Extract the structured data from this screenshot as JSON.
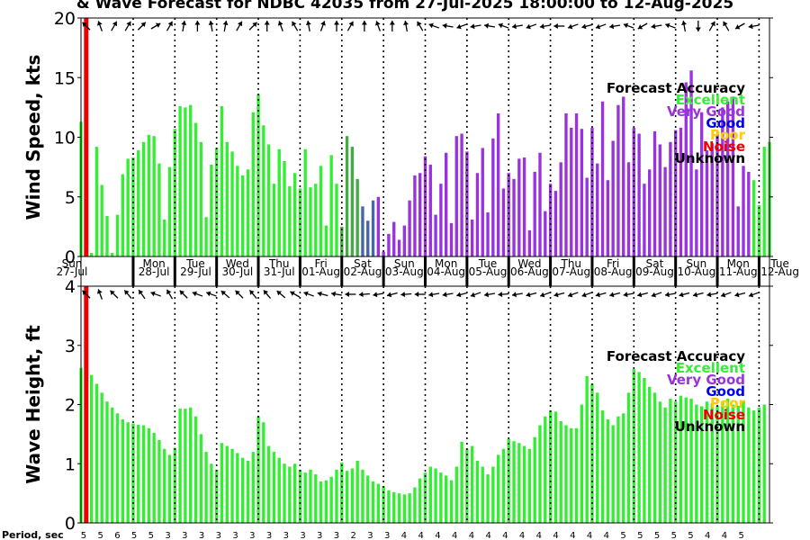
{
  "title": "& Wave Forecast for NDBC 42035 from 27-Jul-2025 18:00:00 to 12-Aug-2025",
  "legend": {
    "title": "Forecast Accuracy",
    "items": [
      {
        "label": "Excellent",
        "color": "#33ee33"
      },
      {
        "label": "Very Good",
        "color": "#9933dd"
      },
      {
        "label": "Good",
        "color": "#0000ee"
      },
      {
        "label": "Poor",
        "color": "#ffcc00"
      },
      {
        "label": "Noise",
        "color": "#ee0000"
      },
      {
        "label": "Unknown",
        "color": "#000000"
      }
    ]
  },
  "days": [
    {
      "dow": "Sun",
      "date": "27-Jul"
    },
    {
      "dow": "Mon",
      "date": "28-Jul"
    },
    {
      "dow": "Tue",
      "date": "29-Jul"
    },
    {
      "dow": "Wed",
      "date": "30-Jul"
    },
    {
      "dow": "Thu",
      "date": "31-Jul"
    },
    {
      "dow": "Fri",
      "date": "01-Aug"
    },
    {
      "dow": "Sat",
      "date": "02-Aug"
    },
    {
      "dow": "Sun",
      "date": "03-Aug"
    },
    {
      "dow": "Mon",
      "date": "04-Aug"
    },
    {
      "dow": "Tue",
      "date": "05-Aug"
    },
    {
      "dow": "Wed",
      "date": "06-Aug"
    },
    {
      "dow": "Thu",
      "date": "07-Aug"
    },
    {
      "dow": "Fri",
      "date": "08-Aug"
    },
    {
      "dow": "Sat",
      "date": "09-Aug"
    },
    {
      "dow": "Sun",
      "date": "10-Aug"
    },
    {
      "dow": "Mon",
      "date": "11-Aug"
    },
    {
      "dow": "Tue",
      "date": "12-Aug"
    }
  ],
  "period_label": "Period, sec",
  "periods": [
    5,
    5,
    6,
    5,
    5,
    3,
    3,
    3,
    3,
    3,
    3,
    3,
    3,
    3,
    3,
    3,
    2,
    3,
    3,
    4,
    4,
    4,
    4,
    4,
    4,
    4,
    4,
    4,
    4,
    4,
    4,
    4,
    5,
    5,
    5,
    5,
    5,
    4,
    4,
    5
  ],
  "chart_data": [
    {
      "type": "bar",
      "ylabel": "Wind Speed, kts",
      "ylim": [
        0,
        20
      ],
      "yticks": [
        0,
        5,
        10,
        15,
        20
      ],
      "xlim_hours": [
        0,
        396
      ],
      "bar_step_hours": 3,
      "start_offset_hours": 0,
      "now_marker_hours": 3,
      "colors_by_group": {
        "E": "#33ee33",
        "V": "#9933dd",
        "D": "#44aa44",
        "G": "#4466aa"
      },
      "values": [
        11.3,
        10.7,
        0.3,
        9.2,
        6.0,
        3.4,
        0.3,
        3.5,
        6.9,
        8.2,
        8.3,
        8.9,
        9.6,
        10.2,
        10.1,
        7.8,
        3.1,
        7.5,
        10.7,
        12.6,
        12.5,
        12.7,
        11.2,
        9.6,
        3.3,
        7.7,
        9.1,
        12.6,
        9.6,
        8.8,
        7.6,
        6.8,
        7.3,
        12.1,
        13.6,
        11.0,
        9.4,
        6.1,
        9.0,
        8.0,
        5.9,
        7.0,
        5.7,
        9.0,
        5.8,
        6.1,
        7.6,
        2.6,
        8.5,
        6.1,
        2.5,
        10.1,
        9.2,
        6.5,
        4.2,
        3.0,
        4.7,
        5.0,
        0.4,
        1.9,
        2.9,
        1.4,
        2.6,
        4.7,
        6.8,
        7.0,
        8.4,
        7.7,
        3.5,
        6.1,
        8.7,
        2.8,
        10.1,
        10.3,
        8.8,
        3.1,
        7.0,
        9.1,
        3.7,
        9.9,
        12.0,
        5.7,
        7.0,
        6.5,
        8.2,
        8.3,
        2.2,
        7.1,
        8.7,
        3.8,
        6.1,
        5.5,
        7.9,
        12.0,
        10.8,
        12.0,
        10.7,
        6.6,
        10.8,
        7.8,
        13.0,
        6.4,
        9.7,
        12.7,
        13.4,
        7.9,
        10.8,
        10.3,
        6.1,
        7.3,
        10.5,
        9.4,
        7.5,
        9.6,
        10.6,
        10.8,
        14.6,
        15.6,
        7.3,
        12.1,
        8.9,
        9.5,
        10.3,
        12.5,
        13.0,
        13.4,
        4.2,
        7.6,
        7.1,
        6.4,
        4.3,
        9.2,
        9.6
      ],
      "groups": "EEEEEEEEEEEEEEEEEEEEEEEEEEEEEEEEEEEEEEEEEEEEEEEEEEDDDDGGGVVVVVVVVVVVVVVVVVVVVVVVVVVVVVVVVVVVVVVVVVVVVVVVVVVVVVVVVVVVVVVVVVVVVVVVV",
      "arrows": [
        225,
        250,
        300,
        300,
        315,
        330,
        300,
        280,
        270,
        260,
        280,
        300,
        315,
        270,
        250,
        240,
        260,
        290,
        270,
        300,
        270,
        250,
        270,
        260,
        240,
        200,
        190,
        160,
        170,
        190,
        200,
        170,
        160,
        170,
        180,
        160,
        165,
        160,
        170,
        200,
        150,
        170,
        200,
        260,
        90,
        300,
        240,
        150,
        170,
        180
      ]
    },
    {
      "type": "bar",
      "ylabel": "Wave Height, ft",
      "ylim": [
        0,
        4
      ],
      "yticks": [
        0,
        1,
        2,
        3,
        4
      ],
      "xlim_hours": [
        0,
        396
      ],
      "bar_step_hours": 3,
      "start_offset_hours": 0,
      "now_marker_hours": 3,
      "color": "#33ee33",
      "values": [
        2.62,
        2.58,
        2.5,
        2.35,
        2.2,
        2.05,
        1.95,
        1.85,
        1.75,
        1.7,
        1.68,
        1.66,
        1.65,
        1.6,
        1.52,
        1.4,
        1.25,
        1.15,
        1.27,
        1.93,
        1.93,
        1.95,
        1.8,
        1.5,
        1.2,
        1.0,
        0.9,
        1.35,
        1.3,
        1.25,
        1.18,
        1.1,
        1.05,
        1.2,
        1.8,
        1.7,
        1.3,
        1.2,
        1.1,
        1.0,
        0.95,
        1.0,
        0.9,
        0.85,
        0.9,
        0.82,
        0.7,
        0.72,
        0.78,
        0.9,
        1.02,
        0.88,
        0.92,
        1.05,
        0.9,
        0.8,
        0.7,
        0.66,
        0.62,
        0.55,
        0.52,
        0.5,
        0.48,
        0.5,
        0.6,
        0.75,
        0.85,
        0.95,
        0.92,
        0.85,
        0.8,
        0.72,
        0.95,
        1.37,
        1.25,
        1.3,
        1.05,
        0.95,
        0.82,
        0.95,
        1.15,
        1.25,
        1.42,
        1.38,
        1.35,
        1.3,
        1.25,
        1.45,
        1.65,
        1.8,
        1.9,
        1.88,
        1.72,
        1.65,
        1.6,
        1.6,
        2.0,
        2.48,
        2.35,
        2.2,
        1.9,
        1.75,
        1.65,
        1.8,
        1.85,
        2.2,
        2.6,
        2.55,
        2.45,
        2.3,
        2.2,
        2.05,
        1.95,
        2.1,
        2.05,
        2.15,
        2.12,
        2.1,
        2.0,
        1.97,
        2.05,
        2.02,
        1.98,
        2.05,
        2.1,
        2.0,
        1.98,
        2.05,
        1.95,
        1.9,
        1.95,
        2.0
      ],
      "arrows": [
        225,
        250,
        225,
        230,
        235,
        200,
        240,
        225,
        200,
        200,
        220,
        225,
        230,
        230,
        220,
        210,
        200,
        195,
        190,
        180,
        175,
        170,
        165,
        175,
        180,
        170,
        170,
        165,
        160,
        170,
        175,
        170,
        165,
        160,
        165,
        160,
        160,
        165,
        165,
        170,
        165,
        160,
        170,
        165,
        165,
        170,
        160,
        165,
        160,
        170
      ]
    }
  ]
}
